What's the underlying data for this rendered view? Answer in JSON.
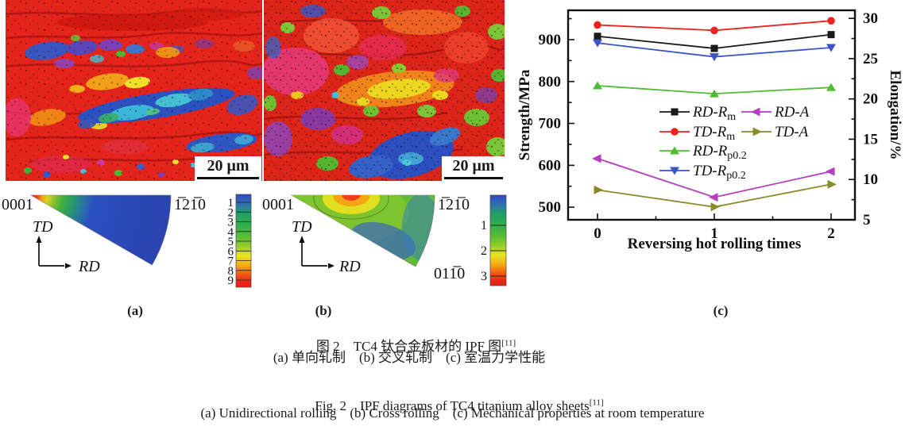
{
  "figure": {
    "panel_labels": {
      "a": "(a)",
      "b": "(b)",
      "c": "(c)"
    },
    "micrograph_a": {
      "scalebar_label": "20 μm"
    },
    "micrograph_b": {
      "scalebar_label": "20 μm"
    },
    "pole_a": {
      "corner_top_left": "0001",
      "corner_top_right": "1̅21̅0",
      "axis_vertical": "TD",
      "axis_horizontal": "RD",
      "scale_labels": [
        "1",
        "2",
        "3",
        "4",
        "5",
        "6",
        "7",
        "8",
        "9"
      ]
    },
    "pole_b": {
      "corner_top_left": "0001",
      "corner_top_right": "1̅21̅0",
      "corner_bottom_right": "011̅0",
      "axis_vertical": "TD",
      "axis_horizontal": "RD",
      "scale_labels": [
        "1",
        "2",
        "3"
      ]
    }
  },
  "chart_data": {
    "type": "line",
    "x": [
      0,
      1,
      2
    ],
    "xlabel": "Reversing hot rolling times",
    "ylabel_left": "Strength/MPa",
    "ylabel_right": "Elongation/%",
    "ylim_left": [
      470,
      970
    ],
    "yticks_left": [
      500,
      600,
      700,
      800,
      900
    ],
    "yticks_left_minor": [
      550,
      650,
      750,
      850,
      950
    ],
    "ylim_right": [
      5,
      31
    ],
    "yticks_right": [
      5,
      10,
      15,
      20,
      25,
      30
    ],
    "yticks_right_minor": [
      7.5,
      12.5,
      17.5,
      22.5,
      27.5
    ],
    "xticks_minor": [
      0.5,
      1.5
    ],
    "grid": false,
    "legend_position": "inside-center",
    "series": [
      {
        "name": "RD-R",
        "sub": "m",
        "axis": "left",
        "color": "#1a1a1a",
        "marker": "square",
        "values": [
          908,
          879,
          912
        ]
      },
      {
        "name": "TD-R",
        "sub": "m",
        "axis": "left",
        "color": "#ee2121",
        "marker": "circle",
        "values": [
          935,
          922,
          945
        ]
      },
      {
        "name": "RD-R",
        "sub": "p0.2",
        "axis": "left",
        "color": "#52bb34",
        "marker": "triangle-up",
        "values": [
          790,
          771,
          786
        ]
      },
      {
        "name": "TD-R",
        "sub": "p0.2",
        "axis": "left",
        "color": "#3a53c8",
        "marker": "triangle-down",
        "values": [
          892,
          859,
          881
        ]
      },
      {
        "name": "RD-A",
        "sub": "",
        "axis": "right",
        "color": "#b53ec1",
        "marker": "triangle-left",
        "values": [
          12.6,
          7.8,
          11.0
        ]
      },
      {
        "name": "TD-A",
        "sub": "",
        "axis": "right",
        "color": "#8a8a28",
        "marker": "triangle-right",
        "values": [
          8.7,
          6.6,
          9.4
        ]
      }
    ],
    "legend": {
      "columns": [
        [
          0,
          1,
          2,
          3
        ],
        [
          4,
          5
        ]
      ]
    }
  },
  "caption": {
    "cn_title": "图 2　TC4 钛合金板材的 IPF 图",
    "ref": "[11]",
    "cn_sub": "(a) 单向轧制 (b) 交叉轧制 (c) 室温力学性能",
    "en_title": "Fig. 2　IPF diagrams of TC4 titanium alloy sheets",
    "en_sub": "(a) Unidirectional rolling (b) Cross rolling (c) Mechanical properties at room temperature"
  }
}
